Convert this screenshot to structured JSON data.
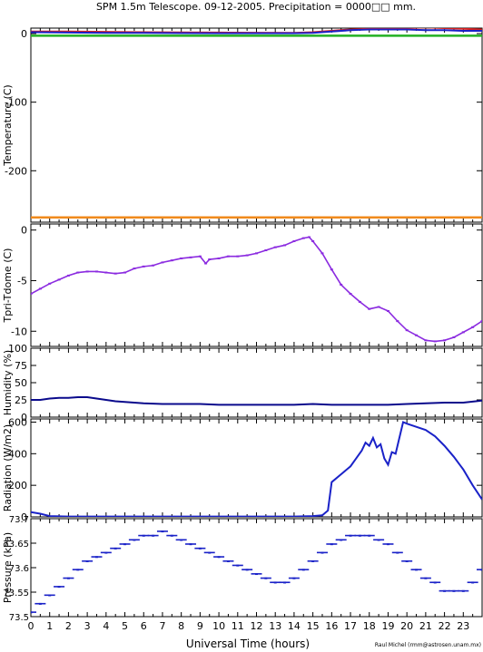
{
  "title": "SPM 1.5m Telescope. 09-12-2005. Precipitation = 0000□□ mm.",
  "xlabel": "Universal Time (hours)",
  "credit": "Raul Michel (rmm@astrosen.unam.mx)",
  "colors": {
    "axis": "#000000",
    "blue": "#1a22c8",
    "red": "#d62020",
    "green": "#22b022",
    "orange": "#f08a1c",
    "purple": "#8b2be0",
    "navy": "#0a0a8c"
  },
  "chart_data": [
    {
      "type": "line",
      "ylabel": "Temperature (C)",
      "xlim": [
        0,
        24
      ],
      "ylim": [
        -275,
        8
      ],
      "yticks": [
        0,
        -100,
        -200
      ],
      "series": [
        {
          "color": "red",
          "x": [
            0,
            2,
            4,
            6,
            8,
            10,
            12,
            14,
            15,
            16,
            17,
            18,
            19,
            20,
            21,
            22,
            23,
            24
          ],
          "y": [
            3,
            3,
            2.5,
            2,
            1.8,
            1.5,
            1.2,
            1,
            2,
            4,
            6,
            7,
            7,
            8,
            9,
            8,
            7,
            6
          ]
        },
        {
          "color": "blue",
          "x": [
            0,
            2,
            4,
            6,
            8,
            10,
            12,
            14,
            15,
            16,
            17,
            18,
            19,
            20,
            21,
            22,
            23,
            24
          ],
          "y": [
            2,
            1.5,
            1,
            1,
            0.8,
            0.5,
            0.5,
            0.5,
            1,
            3,
            5,
            6,
            6,
            6,
            5,
            5,
            4,
            4
          ]
        },
        {
          "color": "green",
          "x": [
            0,
            24
          ],
          "y": [
            -3,
            -3
          ]
        },
        {
          "color": "orange",
          "x": [
            0,
            24
          ],
          "y": [
            -268,
            -268
          ]
        }
      ]
    },
    {
      "type": "scatter",
      "ylabel": "Tpri-Tdome (C)",
      "xlim": [
        0,
        24
      ],
      "ylim": [
        -11.5,
        0.6
      ],
      "yticks": [
        0,
        -5,
        -10
      ],
      "series": [
        {
          "color": "purple",
          "x": [
            0,
            0.5,
            1,
            1.5,
            2,
            2.5,
            3,
            3.5,
            4,
            4.5,
            5,
            5.5,
            6,
            6.5,
            7,
            7.5,
            8,
            8.5,
            9,
            9.3,
            9.5,
            10,
            10.5,
            11,
            11.5,
            12,
            12.5,
            13,
            13.5,
            14,
            14.5,
            14.8,
            15,
            15.5,
            16,
            16.5,
            17,
            17.5,
            18,
            18.5,
            19,
            19.5,
            20,
            20.5,
            21,
            21.5,
            22,
            22.5,
            23,
            23.5,
            24
          ],
          "y": [
            -6.3,
            -5.8,
            -5.3,
            -4.9,
            -4.5,
            -4.2,
            -4.1,
            -4.1,
            -4.2,
            -4.3,
            -4.2,
            -3.8,
            -3.6,
            -3.5,
            -3.2,
            -3.0,
            -2.8,
            -2.7,
            -2.6,
            -3.3,
            -2.9,
            -2.8,
            -2.6,
            -2.6,
            -2.5,
            -2.3,
            -2.0,
            -1.7,
            -1.5,
            -1.1,
            -0.8,
            -0.7,
            -1.1,
            -2.3,
            -3.9,
            -5.4,
            -6.3,
            -7.1,
            -7.8,
            -7.6,
            -8.0,
            -9.0,
            -9.9,
            -10.4,
            -10.9,
            -11.0,
            -10.9,
            -10.6,
            -10.1,
            -9.6,
            -9.0
          ]
        }
      ]
    },
    {
      "type": "line",
      "ylabel": "Humidity (%)",
      "xlim": [
        0,
        24
      ],
      "ylim": [
        0,
        100
      ],
      "yticks": [
        0,
        25,
        50,
        75,
        100
      ],
      "series": [
        {
          "color": "navy",
          "x": [
            0,
            0.5,
            1,
            1.5,
            2,
            2.5,
            3,
            3.5,
            4,
            4.5,
            5,
            5.5,
            6,
            7,
            8,
            9,
            10,
            11,
            12,
            13,
            14,
            15,
            16,
            17,
            18,
            19,
            20,
            21,
            22,
            23,
            24
          ],
          "y": [
            25,
            25,
            27,
            28,
            28,
            29,
            29,
            27,
            25,
            23,
            22,
            21,
            20,
            19,
            19,
            19,
            18,
            18,
            18,
            18,
            18,
            19,
            18,
            18,
            18,
            18,
            19,
            20,
            21,
            21,
            24
          ]
        }
      ]
    },
    {
      "type": "line",
      "ylabel": "Radiation (W/m2)",
      "xlim": [
        0,
        24
      ],
      "ylim": [
        0,
        620
      ],
      "yticks": [
        0,
        200,
        400,
        600
      ],
      "series": [
        {
          "color": "blue",
          "x": [
            0,
            0.5,
            1,
            2,
            4,
            6,
            8,
            10,
            12,
            14,
            15,
            15.5,
            15.8,
            16,
            16.5,
            17,
            17.3,
            17.6,
            17.8,
            18,
            18.2,
            18.4,
            18.6,
            18.8,
            19,
            19.2,
            19.4,
            19.6,
            19.8,
            20,
            20.5,
            21,
            21.5,
            22,
            22.5,
            23,
            23.5,
            24
          ],
          "y": [
            30,
            20,
            5,
            2,
            2,
            2,
            2,
            2,
            2,
            2,
            5,
            10,
            40,
            220,
            270,
            320,
            370,
            420,
            470,
            450,
            500,
            440,
            460,
            370,
            330,
            410,
            400,
            500,
            600,
            590,
            570,
            550,
            510,
            450,
            380,
            300,
            200,
            110
          ]
        }
      ]
    },
    {
      "type": "scatter",
      "ylabel": "Pressure (kPa)",
      "xlim": [
        0,
        24
      ],
      "ylim": [
        73.5,
        73.73
      ],
      "ytick_labels": [
        "73.5",
        "73.55",
        "73.6",
        "73.65",
        "73.7"
      ],
      "series": [
        {
          "color": "blue",
          "x": [
            0,
            0.5,
            1,
            1.5,
            2,
            2.5,
            3,
            3.5,
            4,
            4.5,
            5,
            5.5,
            6,
            6.5,
            7,
            7.5,
            8,
            8.5,
            9,
            9.5,
            10,
            10.5,
            11,
            11.5,
            12,
            12.5,
            13,
            13.5,
            14,
            14.5,
            15,
            15.5,
            16,
            16.5,
            17,
            17.5,
            18,
            18.5,
            19,
            19.5,
            20,
            20.5,
            21,
            21.5,
            22,
            22.5,
            23,
            23.5,
            24
          ],
          "y": [
            73.51,
            73.53,
            73.55,
            73.57,
            73.59,
            73.61,
            73.63,
            73.64,
            73.65,
            73.66,
            73.67,
            73.68,
            73.69,
            73.69,
            73.7,
            73.69,
            73.68,
            73.67,
            73.66,
            73.65,
            73.64,
            73.63,
            73.62,
            73.61,
            73.6,
            73.59,
            73.58,
            73.58,
            73.59,
            73.61,
            73.63,
            73.65,
            73.67,
            73.68,
            73.69,
            73.69,
            73.69,
            73.68,
            73.67,
            73.65,
            73.63,
            73.61,
            73.59,
            73.58,
            73.56,
            73.56,
            73.56,
            73.58,
            73.61
          ]
        }
      ]
    }
  ],
  "xticks": [
    0,
    1,
    2,
    3,
    4,
    5,
    6,
    7,
    8,
    9,
    10,
    11,
    12,
    13,
    14,
    15,
    16,
    17,
    18,
    19,
    20,
    21,
    22,
    23
  ]
}
